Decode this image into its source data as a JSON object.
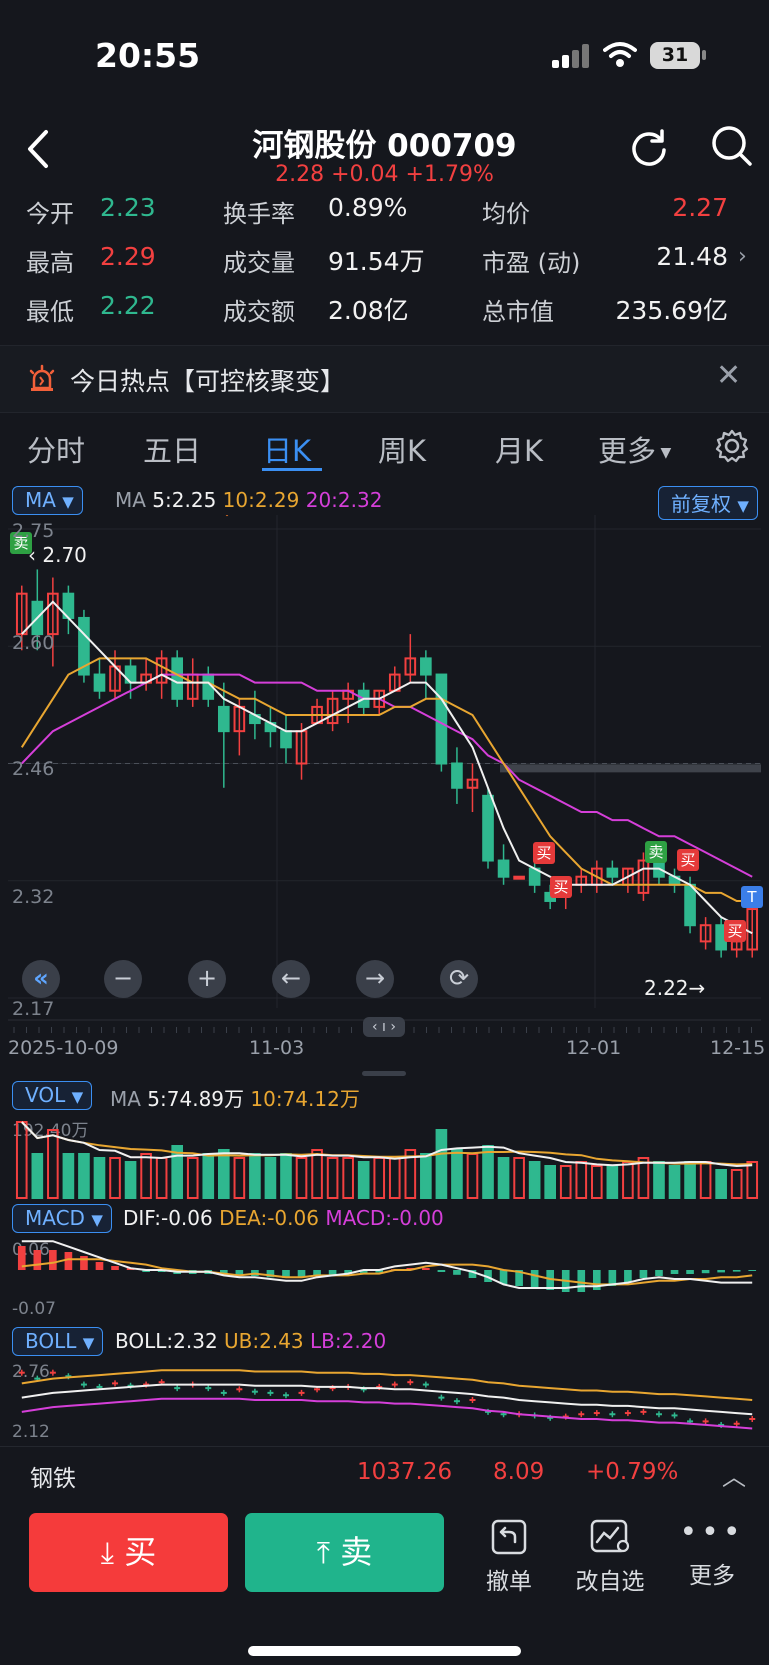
{
  "status_bar": {
    "time": "20:55",
    "battery": "31"
  },
  "header": {
    "title": "河钢股份 000709",
    "price_line": "2.28 +0.04 +1.79%"
  },
  "quote": {
    "open_label": "今开",
    "open": "2.23",
    "high_label": "最高",
    "high": "2.29",
    "low_label": "最低",
    "low": "2.22",
    "turnover_rate_label": "换手率",
    "turnover_rate": "0.89%",
    "volume_label": "成交量",
    "volume": "91.54万",
    "amount_label": "成交额",
    "amount": "2.08亿",
    "avg_label": "均价",
    "avg": "2.27",
    "pe_label": "市盈 (动)",
    "pe": "21.48",
    "mcap_label": "总市值",
    "mcap": "235.69亿"
  },
  "hot_topic": {
    "text": "今日热点【可控核聚变】"
  },
  "tabs": [
    "分时",
    "五日",
    "日K",
    "周K",
    "月K",
    "更多"
  ],
  "active_tab": 2,
  "chart": {
    "indicator_btn": "MA",
    "ma_legend": {
      "label": "MA",
      "ma5": "5:2.25",
      "ma10": "10:2.29",
      "ma20": "20:2.32"
    },
    "adjust_btn": "前复权",
    "y_labels": [
      "2.75",
      "2.60",
      "2.46",
      "2.32",
      "2.17"
    ],
    "max_marker": "2.70",
    "min_marker": "2.22→",
    "signals": {
      "sell": "卖",
      "buy": "买",
      "t": "T"
    },
    "drag_handle": "‹ ı ›",
    "x_labels": [
      "2025-10-09",
      "11-03",
      "12-01",
      "12-15"
    ],
    "colors": {
      "up": "#f24040",
      "down": "#2fb88f",
      "ma5": "#f0f0f0",
      "ma10": "#e8a631",
      "ma20": "#d53fd9",
      "accent": "#3b8ff2"
    }
  },
  "vol": {
    "btn": "VOL",
    "label": "MA",
    "ma5": "5:74.89万",
    "ma10": "10:74.12万",
    "max_label": "192.40万"
  },
  "macd": {
    "btn": "MACD",
    "dif": "DIF:-0.06",
    "dea": "DEA:-0.06",
    "macd": "MACD:-0.00",
    "top_label": "0.06",
    "bottom_label": "-0.07"
  },
  "boll": {
    "btn": "BOLL",
    "boll": "BOLL:2.32",
    "ub": "UB:2.43",
    "lb": "LB:2.20",
    "top_label": "2.76",
    "bottom_label": "2.12"
  },
  "sector": {
    "name": "钢铁",
    "price": "1037.26",
    "change": "8.09",
    "pct": "+0.79%"
  },
  "actions": {
    "buy": "买",
    "sell": "卖",
    "cancel": "撤单",
    "watch": "改自选",
    "more": "更多"
  },
  "chart_data": {
    "type": "candlestick",
    "ylim": [
      2.17,
      2.75
    ],
    "candles": [
      {
        "o": 2.62,
        "h": 2.68,
        "l": 2.6,
        "c": 2.67
      },
      {
        "o": 2.66,
        "h": 2.7,
        "l": 2.6,
        "c": 2.62
      },
      {
        "o": 2.62,
        "h": 2.69,
        "l": 2.58,
        "c": 2.67
      },
      {
        "o": 2.67,
        "h": 2.68,
        "l": 2.62,
        "c": 2.64
      },
      {
        "o": 2.64,
        "h": 2.65,
        "l": 2.56,
        "c": 2.57
      },
      {
        "o": 2.57,
        "h": 2.59,
        "l": 2.54,
        "c": 2.55
      },
      {
        "o": 2.55,
        "h": 2.6,
        "l": 2.54,
        "c": 2.58
      },
      {
        "o": 2.58,
        "h": 2.59,
        "l": 2.54,
        "c": 2.56
      },
      {
        "o": 2.56,
        "h": 2.59,
        "l": 2.55,
        "c": 2.57
      },
      {
        "o": 2.56,
        "h": 2.6,
        "l": 2.54,
        "c": 2.59
      },
      {
        "o": 2.59,
        "h": 2.6,
        "l": 2.53,
        "c": 2.54
      },
      {
        "o": 2.54,
        "h": 2.59,
        "l": 2.53,
        "c": 2.57
      },
      {
        "o": 2.57,
        "h": 2.58,
        "l": 2.53,
        "c": 2.54
      },
      {
        "o": 2.53,
        "h": 2.56,
        "l": 2.43,
        "c": 2.5
      },
      {
        "o": 2.5,
        "h": 2.54,
        "l": 2.47,
        "c": 2.53
      },
      {
        "o": 2.52,
        "h": 2.55,
        "l": 2.49,
        "c": 2.51
      },
      {
        "o": 2.51,
        "h": 2.53,
        "l": 2.48,
        "c": 2.5
      },
      {
        "o": 2.5,
        "h": 2.52,
        "l": 2.46,
        "c": 2.48
      },
      {
        "o": 2.46,
        "h": 2.51,
        "l": 2.44,
        "c": 2.5
      },
      {
        "o": 2.51,
        "h": 2.54,
        "l": 2.51,
        "c": 2.53
      },
      {
        "o": 2.51,
        "h": 2.55,
        "l": 2.5,
        "c": 2.54
      },
      {
        "o": 2.54,
        "h": 2.56,
        "l": 2.51,
        "c": 2.55
      },
      {
        "o": 2.55,
        "h": 2.56,
        "l": 2.52,
        "c": 2.53
      },
      {
        "o": 2.53,
        "h": 2.55,
        "l": 2.52,
        "c": 2.55
      },
      {
        "o": 2.55,
        "h": 2.58,
        "l": 2.55,
        "c": 2.57
      },
      {
        "o": 2.57,
        "h": 2.62,
        "l": 2.56,
        "c": 2.59
      },
      {
        "o": 2.59,
        "h": 2.6,
        "l": 2.54,
        "c": 2.57
      },
      {
        "o": 2.57,
        "h": 2.57,
        "l": 2.45,
        "c": 2.46
      },
      {
        "o": 2.46,
        "h": 2.48,
        "l": 2.41,
        "c": 2.43
      },
      {
        "o": 2.43,
        "h": 2.46,
        "l": 2.4,
        "c": 2.44
      },
      {
        "o": 2.42,
        "h": 2.43,
        "l": 2.33,
        "c": 2.34
      },
      {
        "o": 2.34,
        "h": 2.36,
        "l": 2.31,
        "c": 2.32
      },
      {
        "o": 2.32,
        "h": 2.32,
        "l": 2.32,
        "c": 2.32
      },
      {
        "o": 2.33,
        "h": 2.34,
        "l": 2.3,
        "c": 2.31
      },
      {
        "o": 2.3,
        "h": 2.31,
        "l": 2.28,
        "c": 2.29
      },
      {
        "o": 2.3,
        "h": 2.31,
        "l": 2.28,
        "c": 2.3
      },
      {
        "o": 2.31,
        "h": 2.33,
        "l": 2.3,
        "c": 2.32
      },
      {
        "o": 2.31,
        "h": 2.34,
        "l": 2.3,
        "c": 2.33
      },
      {
        "o": 2.33,
        "h": 2.34,
        "l": 2.31,
        "c": 2.32
      },
      {
        "o": 2.31,
        "h": 2.33,
        "l": 2.3,
        "c": 2.33
      },
      {
        "o": 2.3,
        "h": 2.35,
        "l": 2.29,
        "c": 2.34
      },
      {
        "o": 2.34,
        "h": 2.36,
        "l": 2.31,
        "c": 2.32
      },
      {
        "o": 2.32,
        "h": 2.33,
        "l": 2.3,
        "c": 2.31
      },
      {
        "o": 2.31,
        "h": 2.32,
        "l": 2.25,
        "c": 2.26
      },
      {
        "o": 2.24,
        "h": 2.27,
        "l": 2.23,
        "c": 2.26
      },
      {
        "o": 2.26,
        "h": 2.27,
        "l": 2.22,
        "c": 2.23
      },
      {
        "o": 2.23,
        "h": 2.25,
        "l": 2.22,
        "c": 2.24
      },
      {
        "o": 2.23,
        "h": 2.29,
        "l": 2.22,
        "c": 2.28
      }
    ],
    "ma5": [
      2.62,
      2.64,
      2.66,
      2.64,
      2.62,
      2.6,
      2.58,
      2.56,
      2.56,
      2.57,
      2.56,
      2.56,
      2.56,
      2.54,
      2.53,
      2.52,
      2.51,
      2.5,
      2.5,
      2.51,
      2.52,
      2.53,
      2.54,
      2.54,
      2.55,
      2.56,
      2.56,
      2.54,
      2.51,
      2.48,
      2.43,
      2.38,
      2.34,
      2.33,
      2.32,
      2.31,
      2.31,
      2.31,
      2.31,
      2.32,
      2.33,
      2.33,
      2.32,
      2.31,
      2.29,
      2.27,
      2.26,
      2.25
    ],
    "ma10": [
      2.48,
      2.51,
      2.54,
      2.57,
      2.58,
      2.59,
      2.59,
      2.59,
      2.59,
      2.58,
      2.57,
      2.56,
      2.56,
      2.55,
      2.54,
      2.54,
      2.53,
      2.52,
      2.52,
      2.52,
      2.52,
      2.52,
      2.52,
      2.52,
      2.53,
      2.53,
      2.54,
      2.54,
      2.53,
      2.52,
      2.49,
      2.46,
      2.43,
      2.4,
      2.37,
      2.35,
      2.33,
      2.32,
      2.31,
      2.31,
      2.31,
      2.31,
      2.31,
      2.31,
      2.3,
      2.3,
      2.29,
      2.29
    ],
    "ma20": [
      2.46,
      2.48,
      2.5,
      2.51,
      2.52,
      2.53,
      2.54,
      2.55,
      2.56,
      2.57,
      2.57,
      2.57,
      2.57,
      2.57,
      2.57,
      2.56,
      2.56,
      2.56,
      2.56,
      2.55,
      2.55,
      2.55,
      2.54,
      2.54,
      2.53,
      2.53,
      2.52,
      2.51,
      2.5,
      2.49,
      2.47,
      2.46,
      2.44,
      2.43,
      2.42,
      2.41,
      2.4,
      2.4,
      2.39,
      2.39,
      2.38,
      2.37,
      2.37,
      2.36,
      2.35,
      2.34,
      2.33,
      2.32
    ],
    "vol_ratio": [
      0.95,
      0.55,
      0.85,
      0.55,
      0.55,
      0.5,
      0.5,
      0.45,
      0.55,
      0.5,
      0.65,
      0.5,
      0.55,
      0.6,
      0.5,
      0.55,
      0.5,
      0.55,
      0.5,
      0.6,
      0.5,
      0.5,
      0.45,
      0.5,
      0.5,
      0.6,
      0.55,
      0.85,
      0.6,
      0.55,
      0.65,
      0.5,
      0.5,
      0.45,
      0.4,
      0.4,
      0.45,
      0.4,
      0.4,
      0.45,
      0.5,
      0.45,
      0.4,
      0.45,
      0.45,
      0.35,
      0.35,
      0.45
    ],
    "macd_hist": [
      0.6,
      0.5,
      0.5,
      0.45,
      0.35,
      0.2,
      0.1,
      0.05,
      -0.05,
      -0.05,
      -0.1,
      -0.1,
      -0.1,
      -0.12,
      -0.15,
      -0.15,
      -0.18,
      -0.2,
      -0.18,
      -0.15,
      -0.12,
      -0.1,
      -0.08,
      -0.06,
      0.02,
      0.05,
      0.05,
      -0.05,
      -0.12,
      -0.2,
      -0.3,
      -0.35,
      -0.4,
      -0.45,
      -0.5,
      -0.55,
      -0.55,
      -0.5,
      -0.4,
      -0.3,
      -0.2,
      -0.15,
      -0.1,
      -0.1,
      -0.08,
      -0.06,
      -0.04,
      -0.02
    ]
  }
}
